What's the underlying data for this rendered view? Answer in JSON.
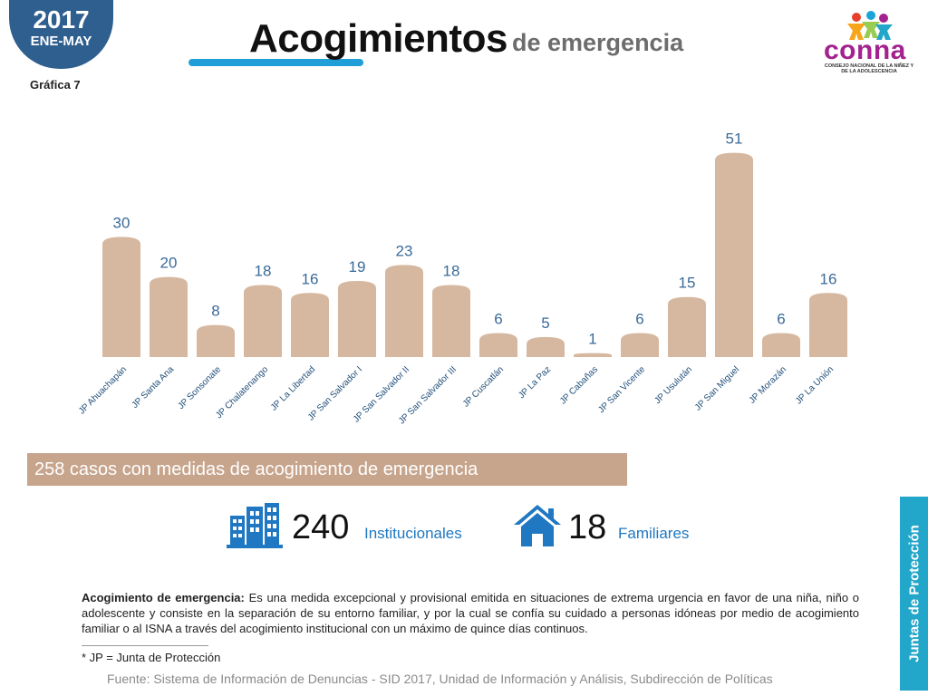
{
  "badge": {
    "year": "2017",
    "period": "ENE-MAY"
  },
  "chart_label": "Gráfica 7",
  "title": {
    "main": "Acogimientos",
    "sub": "de emergencia"
  },
  "logo": {
    "text": "conna",
    "subtitle": "CONSEJO NACIONAL DE LA NIÑEZ Y DE LA ADOLESCENCIA"
  },
  "colors": {
    "bar": "#d6b8a0",
    "value_label": "#3a6a99",
    "summary_bg": "#c7a48c",
    "accent_blue": "#1f9ed8",
    "brand_purple": "#a3228f",
    "side_tab": "#22a6c9"
  },
  "chart_data": {
    "type": "bar",
    "categories": [
      "JP Ahuachapán",
      "JP Santa Ana",
      "JP Sonsonate",
      "JP Chalatenango",
      "JP La Libertad",
      "JP San Salvador I",
      "JP San Salvador II",
      "JP San Salvador III",
      "JP Cuscatlán",
      "JP La Paz",
      "JP Cabañas",
      "JP San Vicente",
      "JP Usulután",
      "JP San Miguel",
      "JP Morazán",
      "JP La Unión"
    ],
    "values": [
      30,
      20,
      8,
      18,
      16,
      19,
      23,
      18,
      6,
      5,
      1,
      6,
      15,
      51,
      6,
      16
    ],
    "ylim": [
      0,
      51
    ],
    "grid": false,
    "data_labels": true
  },
  "summary": "258 casos con medidas de acogimiento de emergencia",
  "stats": [
    {
      "icon": "building-icon",
      "number": "240",
      "label": "Institucionales"
    },
    {
      "icon": "house-icon",
      "number": "18",
      "label": "Familiares"
    }
  ],
  "definition": {
    "term": "Acogimiento de emergencia:",
    "text": "Es una medida excepcional y provisional emitida en situaciones de extrema urgencia en favor de una niña, niño o adolescente y consiste en la separación de su entorno familiar, y por la cual se confía su cuidado a personas idóneas por medio de acogimiento familiar o al ISNA a través del acogimiento institucional con un máximo de quince días continuos."
  },
  "note": "* JP = Junta de Protección",
  "source": "Fuente: Sistema de Información de Denuncias - SID 2017, Unidad de Información y Análisis, Subdirección de Políticas",
  "side_tab": "Juntas de Protección"
}
